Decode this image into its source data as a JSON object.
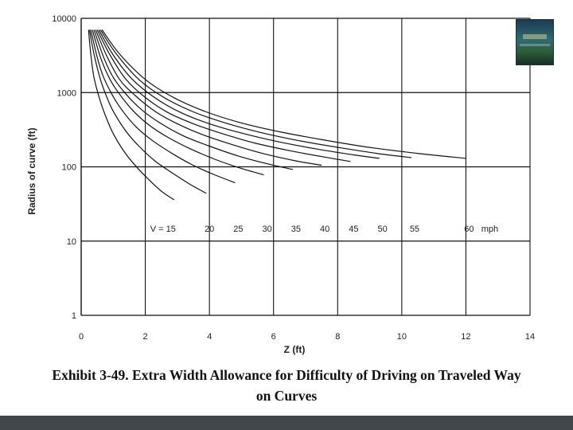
{
  "chart_data": {
    "type": "line",
    "title": "",
    "xlabel": "Z (ft)",
    "ylabel": "Radius of curve (ft)",
    "xlim": [
      0,
      14
    ],
    "ylim": [
      1,
      10000
    ],
    "yscale": "log",
    "grid": true,
    "x_ticks": [
      "0",
      "2",
      "4",
      "6",
      "8",
      "10",
      "12",
      "14"
    ],
    "y_ticks": [
      "1",
      "10",
      "100",
      "1000",
      "10000"
    ],
    "units_label": "mph",
    "series": [
      {
        "name": "V = 15",
        "label": "V = 15",
        "x": [
          0.23,
          0.3,
          0.4,
          0.6,
          0.8,
          1.0,
          1.3,
          1.6,
          2.0,
          2.5,
          2.9
        ],
        "y": [
          7000,
          3300,
          1600,
          760,
          440,
          280,
          170,
          115,
          75,
          47,
          36
        ]
      },
      {
        "name": "20",
        "label": "20",
        "x": [
          0.26,
          0.4,
          0.6,
          0.8,
          1.0,
          1.4,
          1.8,
          2.3,
          2.8,
          3.4,
          3.9
        ],
        "y": [
          7000,
          3300,
          1500,
          870,
          560,
          300,
          190,
          120,
          85,
          58,
          44
        ]
      },
      {
        "name": "25",
        "label": "25",
        "x": [
          0.3,
          0.5,
          0.7,
          1.0,
          1.3,
          1.7,
          2.2,
          2.8,
          3.4,
          4.1,
          4.8
        ],
        "y": [
          7000,
          3000,
          1600,
          880,
          560,
          350,
          230,
          155,
          110,
          80,
          61
        ]
      },
      {
        "name": "30",
        "label": "30",
        "x": [
          0.35,
          0.6,
          0.9,
          1.2,
          1.6,
          2.1,
          2.7,
          3.4,
          4.2,
          5.0,
          5.7
        ],
        "y": [
          7000,
          3000,
          1500,
          950,
          580,
          370,
          250,
          175,
          125,
          95,
          78
        ]
      },
      {
        "name": "35",
        "label": "35",
        "x": [
          0.4,
          0.7,
          1.0,
          1.4,
          1.9,
          2.5,
          3.2,
          4.0,
          4.9,
          5.8,
          6.6
        ],
        "y": [
          7000,
          3000,
          1600,
          950,
          580,
          380,
          260,
          190,
          140,
          110,
          92
        ]
      },
      {
        "name": "40",
        "label": "40",
        "x": [
          0.45,
          0.8,
          1.2,
          1.7,
          2.3,
          3.0,
          3.8,
          4.7,
          5.7,
          6.7,
          7.5
        ],
        "y": [
          7000,
          3100,
          1500,
          900,
          560,
          380,
          270,
          200,
          150,
          120,
          105
        ]
      },
      {
        "name": "45",
        "label": "45",
        "x": [
          0.5,
          0.9,
          1.4,
          2.0,
          2.7,
          3.5,
          4.4,
          5.4,
          6.5,
          7.6,
          8.4
        ],
        "y": [
          7000,
          3200,
          1500,
          860,
          540,
          380,
          280,
          210,
          165,
          135,
          118
        ]
      },
      {
        "name": "50",
        "label": "50",
        "x": [
          0.55,
          1.0,
          1.6,
          2.3,
          3.1,
          4.0,
          5.0,
          6.1,
          7.3,
          8.5,
          9.3
        ],
        "y": [
          7000,
          3200,
          1500,
          850,
          540,
          380,
          285,
          220,
          175,
          145,
          130
        ]
      },
      {
        "name": "55",
        "label": "55",
        "x": [
          0.6,
          1.1,
          1.8,
          2.6,
          3.5,
          4.5,
          5.6,
          6.8,
          8.1,
          9.3,
          10.3
        ],
        "y": [
          7000,
          3300,
          1500,
          850,
          550,
          390,
          290,
          225,
          180,
          150,
          133
        ]
      },
      {
        "name": "60",
        "label": "60",
        "x": [
          0.65,
          1.2,
          2.0,
          2.9,
          3.9,
          5.0,
          6.3,
          7.7,
          9.1,
          10.6,
          12.0
        ],
        "y": [
          7000,
          3300,
          1500,
          850,
          550,
          390,
          290,
          225,
          180,
          150,
          130
        ]
      }
    ]
  },
  "caption": {
    "line1": "Exhibit 3-49.  Extra Width Allowance for Difficulty of Driving on Traveled Way",
    "line2": "on Curves"
  }
}
